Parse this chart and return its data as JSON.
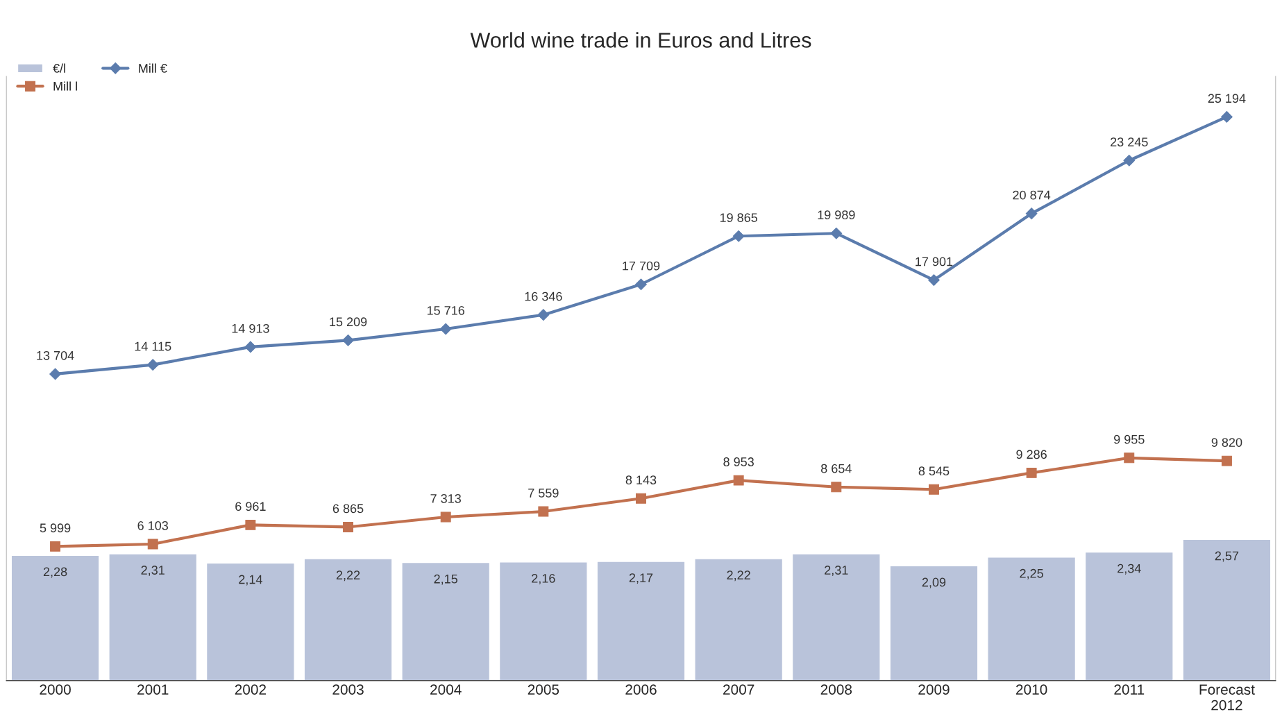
{
  "chart_data": {
    "type": "bar",
    "title": "World wine trade in Euros and Litres",
    "categories": [
      "2000",
      "2001",
      "2002",
      "2003",
      "2004",
      "2005",
      "2006",
      "2007",
      "2008",
      "2009",
      "2010",
      "2011",
      "Forecast\n2012"
    ],
    "series": [
      {
        "name": "€/l",
        "axis": "y2",
        "color": "#b9c3da",
        "values": [
          2.28,
          2.31,
          2.14,
          2.22,
          2.15,
          2.16,
          2.17,
          2.22,
          2.31,
          2.09,
          2.25,
          2.34,
          2.57
        ],
        "value_labels": [
          "2,28",
          "2,31",
          "2,14",
          "2,22",
          "2,15",
          "2,16",
          "2,17",
          "2,22",
          "2,31",
          "2,09",
          "2,25",
          "2,34",
          "2,57"
        ]
      },
      {
        "name": "Mill €",
        "type": "line",
        "marker": "diamond",
        "color": "#5b7cad",
        "values": [
          13704,
          14115,
          14913,
          15209,
          15716,
          16346,
          17709,
          19865,
          19989,
          17901,
          20874,
          23245,
          25194
        ],
        "value_labels": [
          "13 704",
          "14 115",
          "14 913",
          "15 209",
          "15 716",
          "16 346",
          "17 709",
          "19 865",
          "19 989",
          "17 901",
          "20 874",
          "23 245",
          "25 194"
        ]
      },
      {
        "name": "Mill l",
        "type": "line",
        "marker": "square",
        "color": "#c2714f",
        "values": [
          5999,
          6103,
          6961,
          6865,
          7313,
          7559,
          8143,
          8953,
          8654,
          8545,
          9286,
          9955,
          9820
        ],
        "value_labels": [
          "5 999",
          "6 103",
          "6 961",
          "6 865",
          "7 313",
          "7 559",
          "8 143",
          "8 953",
          "8 654",
          "8 545",
          "9 286",
          "9 955",
          "9 820"
        ]
      }
    ],
    "ylim": [
      0,
      27000
    ],
    "y2lim": [
      0,
      11
    ],
    "tick_labels": "x",
    "grid": false,
    "legend": "top left"
  }
}
